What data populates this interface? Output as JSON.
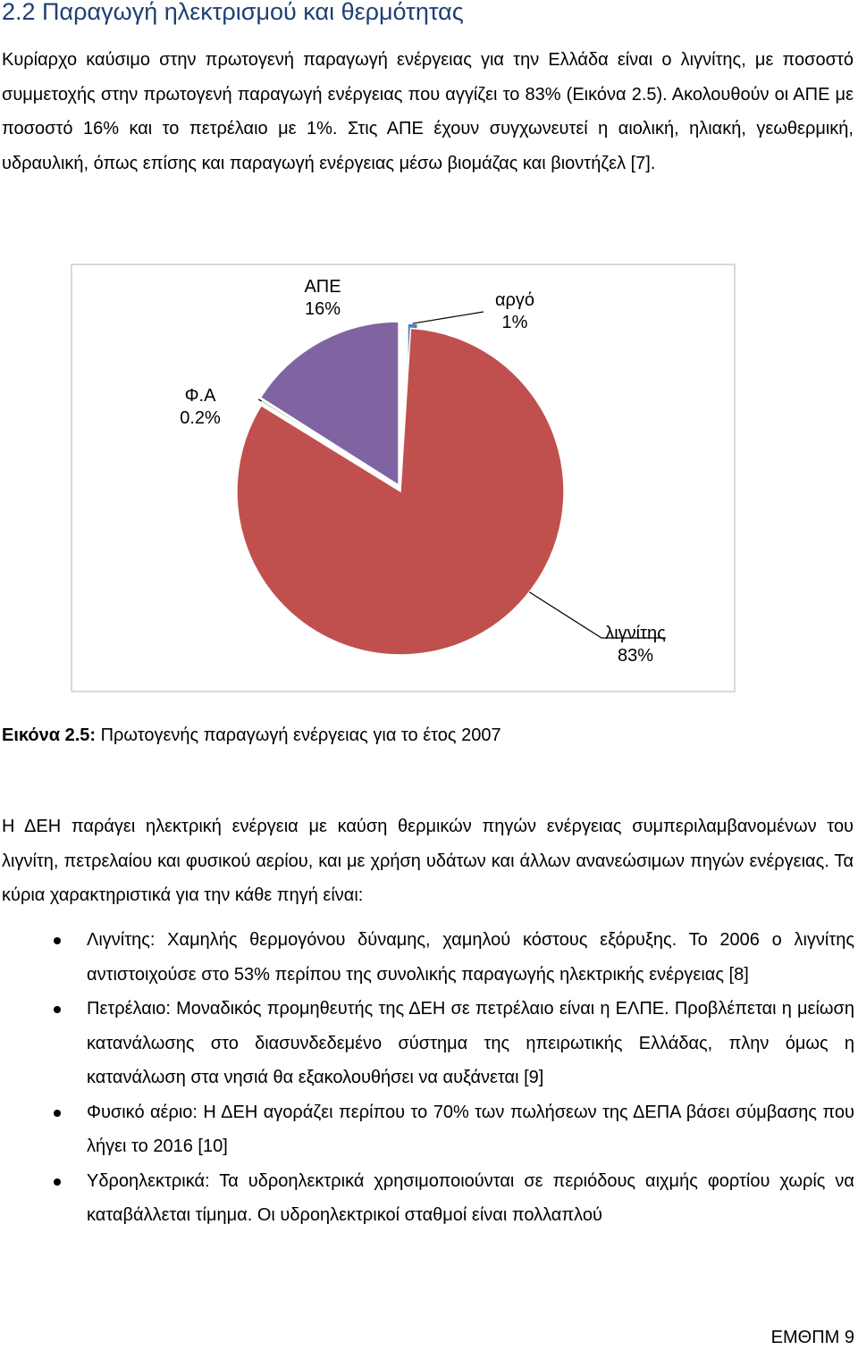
{
  "section": {
    "heading": "2.2 Παραγωγή ηλεκτρισμού και θερμότητας",
    "intro": "Κυρίαρχο καύσιμο στην πρωτογενή παραγωγή ενέργειας για την Ελλάδα είναι ο λιγνίτης, με ποσοστό συμμετοχής στην πρωτογενή παραγωγή ενέργειας που αγγίζει το 83% (Εικόνα 2.5). Ακολουθούν οι ΑΠΕ με ποσοστό 16% και το πετρέλαιο με 1%. Στις ΑΠΕ έχουν συγχωνευτεί η αιολική, ηλιακή, γεωθερμική, υδραυλική, όπως επίσης και παραγωγή ενέργειας μέσω βιομάζας και βιοντήζελ [7]."
  },
  "chart_data": {
    "type": "pie",
    "slices": [
      {
        "name": "αργό",
        "label": "1%",
        "value": 1,
        "color": "#4f81bd"
      },
      {
        "name": "λιγνίτης",
        "label": "83%",
        "value": 82.8,
        "color": "#c0504d"
      },
      {
        "name": "Φ.Α",
        "label": "0.2%",
        "value": 0.2,
        "color": "#9bbb59"
      },
      {
        "name": "ΑΠΕ",
        "label": "16%",
        "value": 16,
        "color": "#8064a2"
      }
    ]
  },
  "caption": {
    "label": "Εικόνα 2.5:",
    "text": " Πρωτογενής παραγωγή ενέργειας  για το έτος 2007"
  },
  "body": {
    "paragraph": "Η ΔΕΗ παράγει ηλεκτρική ενέργεια με καύση θερμικών πηγών ενέργειας συμπεριλαμβανομένων του λιγνίτη, πετρελαίου και φυσικού αερίου, και με χρήση υδάτων και άλλων ανανεώσιμων πηγών ενέργειας. Τα κύρια χαρακτηριστικά για την κάθε πηγή είναι:",
    "bullets": [
      "Λιγνίτης: Χαμηλής θερμογόνου δύναμης, χαμηλού κόστους εξόρυξης. Το 2006 ο λιγνίτης αντιστοιχούσε στο 53% περίπου της συνολικής παραγωγής ηλεκτρικής ενέργειας [8]",
      "Πετρέλαιο: Μοναδικός προμηθευτής της ΔΕΗ σε πετρέλαιο είναι η ΕΛΠΕ. Προβλέπεται η μείωση κατανάλωσης στο διασυνδεδεμένο σύστημα της ηπειρωτικής Ελλάδας, πλην όμως η κατανάλωση στα νησιά θα εξακολουθήσει να αυξάνεται [9]",
      "Φυσικό αέριο: Η ΔΕΗ αγοράζει περίπου το 70% των πωλήσεων της ΔΕΠΑ βάσει σύμβασης που λήγει το 2016 [10]",
      "Υδροηλεκτρικά: Τα υδροηλεκτρικά χρησιμοποιούνται σε περιόδους αιχμής φορτίου χωρίς να καταβάλλεται τίμημα. Οι υδροηλεκτρικοί σταθμοί είναι πολλαπλού"
    ]
  },
  "footer": {
    "page_label": "ΕΜΘΠΜ 9"
  }
}
